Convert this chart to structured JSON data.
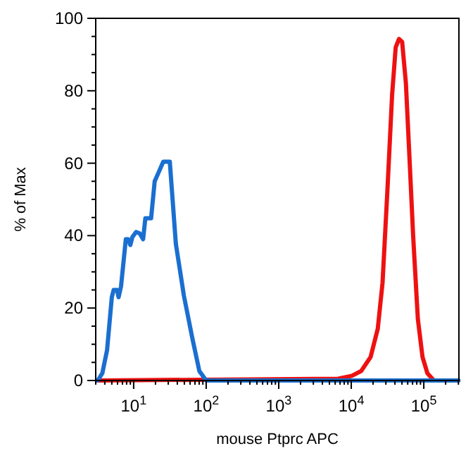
{
  "chart_data": {
    "type": "line",
    "xlabel": "mouse Ptprc APC",
    "ylabel": "% of Max",
    "log": "x",
    "xlim": [
      3,
      305000
    ],
    "ylim": [
      0,
      100
    ],
    "xticks": [
      {
        "value": 3,
        "label": null
      },
      {
        "value": 4,
        "label": null
      },
      {
        "value": 5,
        "label": null
      },
      {
        "value": 6,
        "label": null
      },
      {
        "value": 7,
        "label": null
      },
      {
        "value": 8,
        "label": null
      },
      {
        "value": 9,
        "label": null
      },
      {
        "value": 10,
        "label": "10$^{1}$"
      },
      {
        "value": 20,
        "label": null
      },
      {
        "value": 30,
        "label": null
      },
      {
        "value": 40,
        "label": null
      },
      {
        "value": 50,
        "label": null
      },
      {
        "value": 60,
        "label": null
      },
      {
        "value": 70,
        "label": null
      },
      {
        "value": 80,
        "label": null
      },
      {
        "value": 90,
        "label": null
      },
      {
        "value": 100,
        "label": "10$^{2}$"
      },
      {
        "value": 200,
        "label": null
      },
      {
        "value": 300,
        "label": null
      },
      {
        "value": 400,
        "label": null
      },
      {
        "value": 500,
        "label": null
      },
      {
        "value": 600,
        "label": null
      },
      {
        "value": 700,
        "label": null
      },
      {
        "value": 800,
        "label": null
      },
      {
        "value": 900,
        "label": null
      },
      {
        "value": 1000,
        "label": "10$^{3}$"
      },
      {
        "value": 2000,
        "label": null
      },
      {
        "value": 3000,
        "label": null
      },
      {
        "value": 4000,
        "label": null
      },
      {
        "value": 5000,
        "label": null
      },
      {
        "value": 6000,
        "label": null
      },
      {
        "value": 7000,
        "label": null
      },
      {
        "value": 8000,
        "label": null
      },
      {
        "value": 9000,
        "label": null
      },
      {
        "value": 10000,
        "label": "10$^{4}$"
      },
      {
        "value": 20000,
        "label": null
      },
      {
        "value": 30000,
        "label": null
      },
      {
        "value": 40000,
        "label": null
      },
      {
        "value": 50000,
        "label": null
      },
      {
        "value": 60000,
        "label": null
      },
      {
        "value": 70000,
        "label": null
      },
      {
        "value": 80000,
        "label": null
      },
      {
        "value": 90000,
        "label": null
      },
      {
        "value": 100000,
        "label": "10$^{5}$"
      },
      {
        "value": 200000,
        "label": null
      },
      {
        "value": 300000,
        "label": null
      }
    ],
    "yticks": [
      0,
      {
        "value": 5,
        "label": null
      },
      {
        "value": 10,
        "label": null
      },
      {
        "value": 15,
        "label": null
      },
      20,
      {
        "value": 25,
        "label": null
      },
      {
        "value": 30,
        "label": null
      },
      {
        "value": 35,
        "label": null
      },
      40,
      {
        "value": 45,
        "label": null
      },
      {
        "value": 50,
        "label": null
      },
      {
        "value": 55,
        "label": null
      },
      60,
      {
        "value": 65,
        "label": null
      },
      {
        "value": 70,
        "label": null
      },
      {
        "value": 75,
        "label": null
      },
      80,
      {
        "value": 85,
        "label": null
      },
      {
        "value": 90,
        "label": null
      },
      {
        "value": 95,
        "label": null
      },
      100
    ],
    "grid": false,
    "marker": "none",
    "line_style": "solid",
    "series": [
      {
        "color": "#ee1111",
        "x": [
          3.2,
          6600,
          10200,
          13700,
          18500,
          23200,
          27000,
          31600,
          36600,
          41000,
          45500,
          50300,
          56700,
          64000,
          71300,
          82800,
          96000,
          112000,
          138000,
          300000
        ],
        "values": [
          0,
          0.5,
          1.3,
          2.6,
          6.5,
          14.3,
          27,
          53,
          79,
          92,
          94.3,
          93.5,
          82,
          60,
          40,
          17,
          6.5,
          2,
          0,
          0
        ]
      },
      {
        "color": "#1a6fd0",
        "x": [
          3.2,
          3.7,
          4.3,
          5.0,
          5.3,
          5.9,
          6.2,
          6.7,
          7.8,
          8.4,
          9.0,
          9.6,
          10.8,
          12.1,
          13.5,
          14.5,
          17.4,
          19.5,
          22.7,
          25.6,
          31.5,
          38.2,
          49.3,
          64.4,
          80.5,
          100,
          300000
        ],
        "values": [
          0,
          2,
          8.4,
          23,
          25,
          25,
          23,
          26,
          39,
          39,
          37.4,
          39.6,
          41,
          40.6,
          39,
          44.8,
          44.8,
          55,
          58,
          60.4,
          60.4,
          37.7,
          23.4,
          11.7,
          2.6,
          0,
          0
        ]
      }
    ]
  }
}
